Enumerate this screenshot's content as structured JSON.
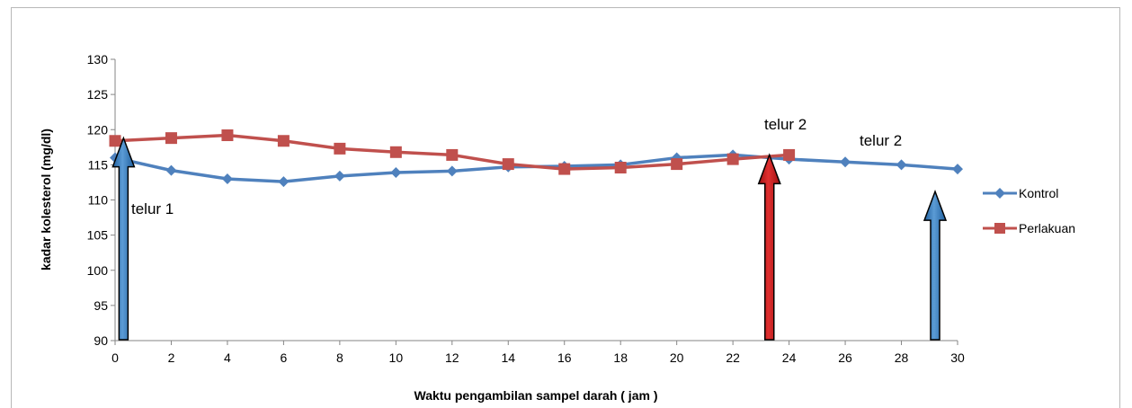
{
  "chart_data": {
    "type": "line",
    "title": "",
    "xlabel": "Waktu pengambilan sampel darah ( jam )",
    "ylabel": "kadar kolesterol (mg/dl)",
    "xlim": [
      0,
      30
    ],
    "ylim": [
      90,
      130
    ],
    "x_ticks": [
      "0",
      "2",
      "4",
      "6",
      "8",
      "10",
      "12",
      "14",
      "16",
      "18",
      "20",
      "22",
      "24",
      "26",
      "28",
      "30"
    ],
    "y_ticks": [
      "130",
      "125",
      "120",
      "115",
      "110",
      "105",
      "100",
      "95",
      "90"
    ],
    "grid": false,
    "legend_position": "right",
    "series": [
      {
        "name": "Kontrol",
        "color": "#4f81bd",
        "marker": "diamond",
        "x": [
          0,
          2,
          4,
          6,
          8,
          10,
          12,
          14,
          16,
          18,
          20,
          22,
          24,
          26,
          28,
          30
        ],
        "y": [
          116,
          114.2,
          113,
          112.6,
          113.4,
          113.9,
          114.1,
          114.7,
          114.8,
          115,
          116,
          116.4,
          115.8,
          115.4,
          115,
          114.4
        ]
      },
      {
        "name": "Perlakuan",
        "color": "#c0504d",
        "marker": "square",
        "x": [
          0,
          2,
          4,
          6,
          8,
          10,
          12,
          14,
          16,
          18,
          20,
          22,
          24
        ],
        "y": [
          118.4,
          118.8,
          119.2,
          118.4,
          117.3,
          116.8,
          116.4,
          115.1,
          114.4,
          114.6,
          115.1,
          115.8,
          116.4
        ]
      }
    ],
    "annotations": [
      {
        "text": "telur 1",
        "arrow_color": "#2e75b6",
        "x": 0.3
      },
      {
        "text": "telur 2",
        "arrow_color": "#c00000",
        "x": 23.3
      },
      {
        "text": "telur 2",
        "arrow_color": "#2e75b6",
        "x": 29.2
      }
    ]
  }
}
